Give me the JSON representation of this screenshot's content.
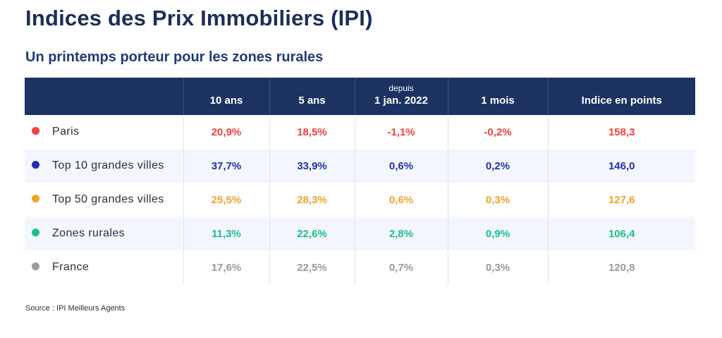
{
  "title": "Indices des Prix Immobiliers (IPI)",
  "subtitle": "Un printemps porteur pour les zones rurales",
  "source": "Source : IPI Meilleurs Agents",
  "chart_data": {
    "type": "table",
    "columns": [
      {
        "label": "10 ans",
        "sublabel": ""
      },
      {
        "label": "5 ans",
        "sublabel": ""
      },
      {
        "label": "1 jan. 2022",
        "sublabel": "depuis"
      },
      {
        "label": "1 mois",
        "sublabel": ""
      },
      {
        "label": "Indice en points",
        "sublabel": ""
      }
    ],
    "rows": [
      {
        "name": "Paris",
        "color": "#f0413c",
        "values": [
          "20,9%",
          "18,5%",
          "-1,1%",
          "-0,2%",
          "158,3"
        ]
      },
      {
        "name": "Top 10 grandes villes",
        "color": "#1f2fb0",
        "values": [
          "37,7%",
          "33,9%",
          "0,6%",
          "0,2%",
          "146,0"
        ]
      },
      {
        "name": "Top 50 grandes villes",
        "color": "#f2a32a",
        "values": [
          "25,5%",
          "28,3%",
          "0,6%",
          "0,3%",
          "127,6"
        ]
      },
      {
        "name": "Zones rurales",
        "color": "#1bbf8a",
        "values": [
          "11,3%",
          "22,6%",
          "2,8%",
          "0,9%",
          "106,4"
        ]
      },
      {
        "name": "France",
        "color": "#9a9a9a",
        "values": [
          "17,6%",
          "22,5%",
          "0,7%",
          "0,3%",
          "120,8"
        ]
      }
    ]
  }
}
